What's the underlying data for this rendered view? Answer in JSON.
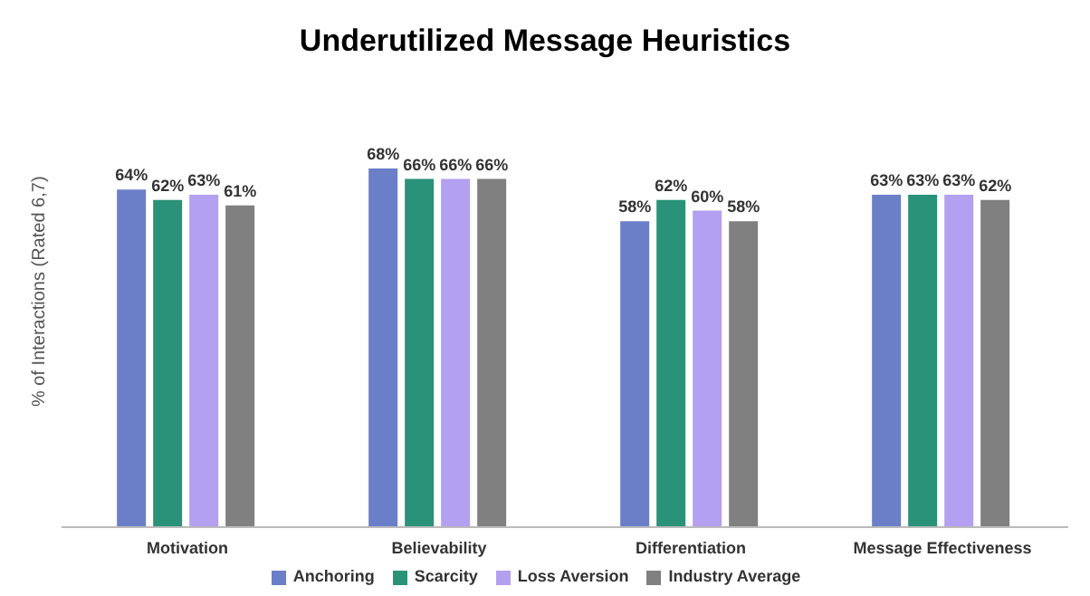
{
  "chart_data": {
    "type": "bar",
    "title": "Underutilized Message Heuristics",
    "ylabel": "% of Interactions (Rated 6,7)",
    "categories": [
      "Motivation",
      "Believability",
      "Differentiation",
      "Message Effectiveness"
    ],
    "series": [
      {
        "name": "Anchoring",
        "color": "#6b7fc8",
        "values": [
          64,
          68,
          58,
          63
        ],
        "value_labels": [
          "64%",
          "68%",
          "58%",
          "63%"
        ]
      },
      {
        "name": "Scarcity",
        "color": "#2a9278",
        "values": [
          62,
          66,
          62,
          63
        ],
        "value_labels": [
          "62%",
          "66%",
          "62%",
          "63%"
        ]
      },
      {
        "name": "Loss Aversion",
        "color": "#b3a0f0",
        "values": [
          63,
          66,
          60,
          63
        ],
        "value_labels": [
          "63%",
          "66%",
          "60%",
          "63%"
        ]
      },
      {
        "name": "Industry Average",
        "color": "#808080",
        "values": [
          61,
          66,
          58,
          62
        ],
        "value_labels": [
          "61%",
          "66%",
          "58%",
          "62%"
        ]
      }
    ],
    "tick_labels": "x",
    "legend": "bottom"
  }
}
